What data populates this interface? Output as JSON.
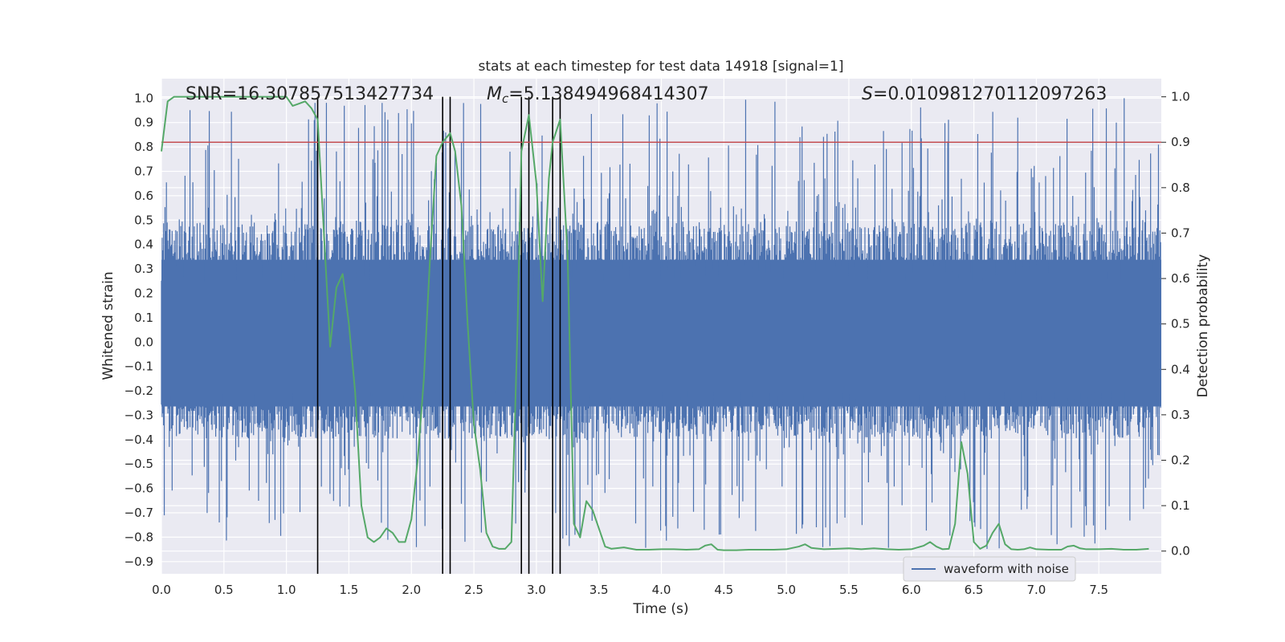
{
  "chart_data": {
    "type": "line",
    "title": "stats at each timestep for test data 14918 [signal=1]",
    "xlabel": "Time (s)",
    "ylabel": "Whitened strain",
    "y2label": "Detection probability",
    "xlim": [
      0.0,
      8.0
    ],
    "ylim": [
      -0.95,
      1.08
    ],
    "y2lim": [
      -0.05,
      1.04
    ],
    "xticks": [
      "0.0",
      "0.5",
      "1.0",
      "1.5",
      "2.0",
      "2.5",
      "3.0",
      "3.5",
      "4.0",
      "4.5",
      "5.0",
      "5.5",
      "6.0",
      "6.5",
      "7.0",
      "7.5"
    ],
    "yticks": [
      "1.0",
      "0.9",
      "0.8",
      "0.7",
      "0.6",
      "0.5",
      "0.4",
      "0.3",
      "0.2",
      "0.1",
      "0.0",
      "-0.1",
      "-0.2",
      "-0.3",
      "-0.4",
      "-0.5",
      "-0.6",
      "-0.7",
      "-0.8",
      "-0.9"
    ],
    "y2ticks": [
      "1.0",
      "0.9",
      "0.8",
      "0.7",
      "0.6",
      "0.5",
      "0.4",
      "0.3",
      "0.2",
      "0.1",
      "0.0"
    ],
    "annotations": {
      "snr": "SNR=16.307857513427734",
      "mc_symbol": "M",
      "mc_sub": "c",
      "mc_value": "=5.138494968414307",
      "s_symbol": "S",
      "s_value": "=0.010981270112097263"
    },
    "legend": {
      "label": "waveform with noise",
      "loc": "lower-right"
    },
    "threshold": {
      "value": 0.9,
      "axis": "y2",
      "color": "#c44e52"
    },
    "waveform": {
      "name": "waveform with noise",
      "color": "#4c72b0",
      "band_upper": 0.45,
      "band_lower": -0.33,
      "peak_upper_max": 1.0,
      "peak_lower_min": -0.85,
      "sample_count": 1400,
      "seed": 14918
    },
    "vertical_lines": [
      1.25,
      2.25,
      2.31,
      2.88,
      2.94,
      3.13,
      3.19
    ],
    "vlines_range": [
      -0.05,
      1.0
    ],
    "probability": {
      "name": "detection probability",
      "color": "#55a868",
      "x": [
        0.0,
        0.05,
        0.1,
        0.2,
        0.3,
        0.4,
        0.5,
        0.6,
        0.7,
        0.8,
        0.9,
        1.0,
        1.05,
        1.1,
        1.15,
        1.2,
        1.25,
        1.3,
        1.35,
        1.4,
        1.45,
        1.5,
        1.55,
        1.6,
        1.65,
        1.7,
        1.75,
        1.8,
        1.85,
        1.9,
        1.95,
        2.0,
        2.05,
        2.1,
        2.15,
        2.2,
        2.25,
        2.31,
        2.35,
        2.4,
        2.45,
        2.5,
        2.55,
        2.6,
        2.65,
        2.7,
        2.75,
        2.8,
        2.85,
        2.88,
        2.94,
        3.0,
        3.05,
        3.1,
        3.13,
        3.19,
        3.25,
        3.3,
        3.35,
        3.4,
        3.45,
        3.5,
        3.55,
        3.6,
        3.7,
        3.8,
        3.9,
        4.0,
        4.1,
        4.2,
        4.3,
        4.35,
        4.4,
        4.45,
        4.5,
        4.6,
        4.7,
        4.8,
        4.9,
        5.0,
        5.1,
        5.15,
        5.2,
        5.3,
        5.4,
        5.5,
        5.6,
        5.7,
        5.8,
        5.9,
        6.0,
        6.1,
        6.15,
        6.2,
        6.25,
        6.3,
        6.35,
        6.4,
        6.45,
        6.5,
        6.55,
        6.6,
        6.65,
        6.7,
        6.75,
        6.8,
        6.85,
        6.9,
        6.95,
        7.0,
        7.1,
        7.2,
        7.25,
        7.3,
        7.35,
        7.4,
        7.5,
        7.6,
        7.7,
        7.8,
        7.9
      ],
      "y": [
        0.88,
        0.99,
        1.0,
        1.0,
        1.0,
        1.0,
        1.0,
        1.0,
        1.0,
        1.0,
        1.0,
        1.0,
        0.98,
        0.985,
        0.99,
        0.975,
        0.95,
        0.7,
        0.45,
        0.58,
        0.61,
        0.5,
        0.35,
        0.1,
        0.03,
        0.02,
        0.03,
        0.05,
        0.04,
        0.02,
        0.02,
        0.07,
        0.2,
        0.38,
        0.65,
        0.87,
        0.9,
        0.92,
        0.88,
        0.76,
        0.5,
        0.28,
        0.18,
        0.04,
        0.01,
        0.005,
        0.005,
        0.02,
        0.5,
        0.88,
        0.96,
        0.81,
        0.55,
        0.82,
        0.9,
        0.95,
        0.65,
        0.06,
        0.03,
        0.11,
        0.09,
        0.05,
        0.01,
        0.005,
        0.008,
        0.003,
        0.003,
        0.004,
        0.004,
        0.003,
        0.004,
        0.012,
        0.015,
        0.003,
        0.002,
        0.002,
        0.003,
        0.003,
        0.003,
        0.004,
        0.01,
        0.015,
        0.007,
        0.004,
        0.005,
        0.006,
        0.004,
        0.006,
        0.004,
        0.003,
        0.004,
        0.012,
        0.02,
        0.01,
        0.004,
        0.005,
        0.06,
        0.24,
        0.17,
        0.02,
        0.005,
        0.012,
        0.04,
        0.06,
        0.015,
        0.004,
        0.003,
        0.004,
        0.008,
        0.004,
        0.003,
        0.003,
        0.01,
        0.012,
        0.006,
        0.004,
        0.004,
        0.005,
        0.003,
        0.003,
        0.005
      ]
    },
    "grid": true
  }
}
